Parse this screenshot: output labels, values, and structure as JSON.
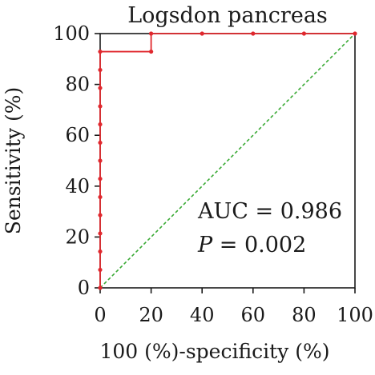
{
  "chart_data": {
    "type": "line",
    "title": "Logsdon pancreas",
    "xlabel": "100 (%)-specificity (%)",
    "ylabel": "Sensitivity (%)",
    "xlim": [
      0,
      100
    ],
    "ylim": [
      0,
      100
    ],
    "xticks": [
      "0",
      "20",
      "40",
      "60",
      "80",
      "100"
    ],
    "yticks": [
      "0",
      "20",
      "40",
      "60",
      "80",
      "100"
    ],
    "grid": false,
    "series": [
      {
        "color": "#e0282e",
        "points": [
          [
            0,
            0
          ],
          [
            0,
            7.1
          ],
          [
            0,
            14.3
          ],
          [
            0,
            21.4
          ],
          [
            0,
            28.6
          ],
          [
            0,
            35.7
          ],
          [
            0,
            42.9
          ],
          [
            0,
            50
          ],
          [
            0,
            57.1
          ],
          [
            0,
            64.3
          ],
          [
            0,
            71.4
          ],
          [
            0,
            78.6
          ],
          [
            0,
            85.7
          ],
          [
            0,
            92.9
          ],
          [
            20,
            92.9
          ],
          [
            20,
            100
          ],
          [
            40,
            100
          ],
          [
            60,
            100
          ],
          [
            80,
            100
          ],
          [
            100,
            100
          ]
        ]
      }
    ],
    "reference_line": {
      "color": "#3aaa35",
      "points": [
        [
          0,
          0
        ],
        [
          100,
          100
        ]
      ]
    },
    "annotations": {
      "auc": "AUC = 0.986",
      "p_symbol": "P",
      "p_rest": " = 0.002"
    }
  }
}
